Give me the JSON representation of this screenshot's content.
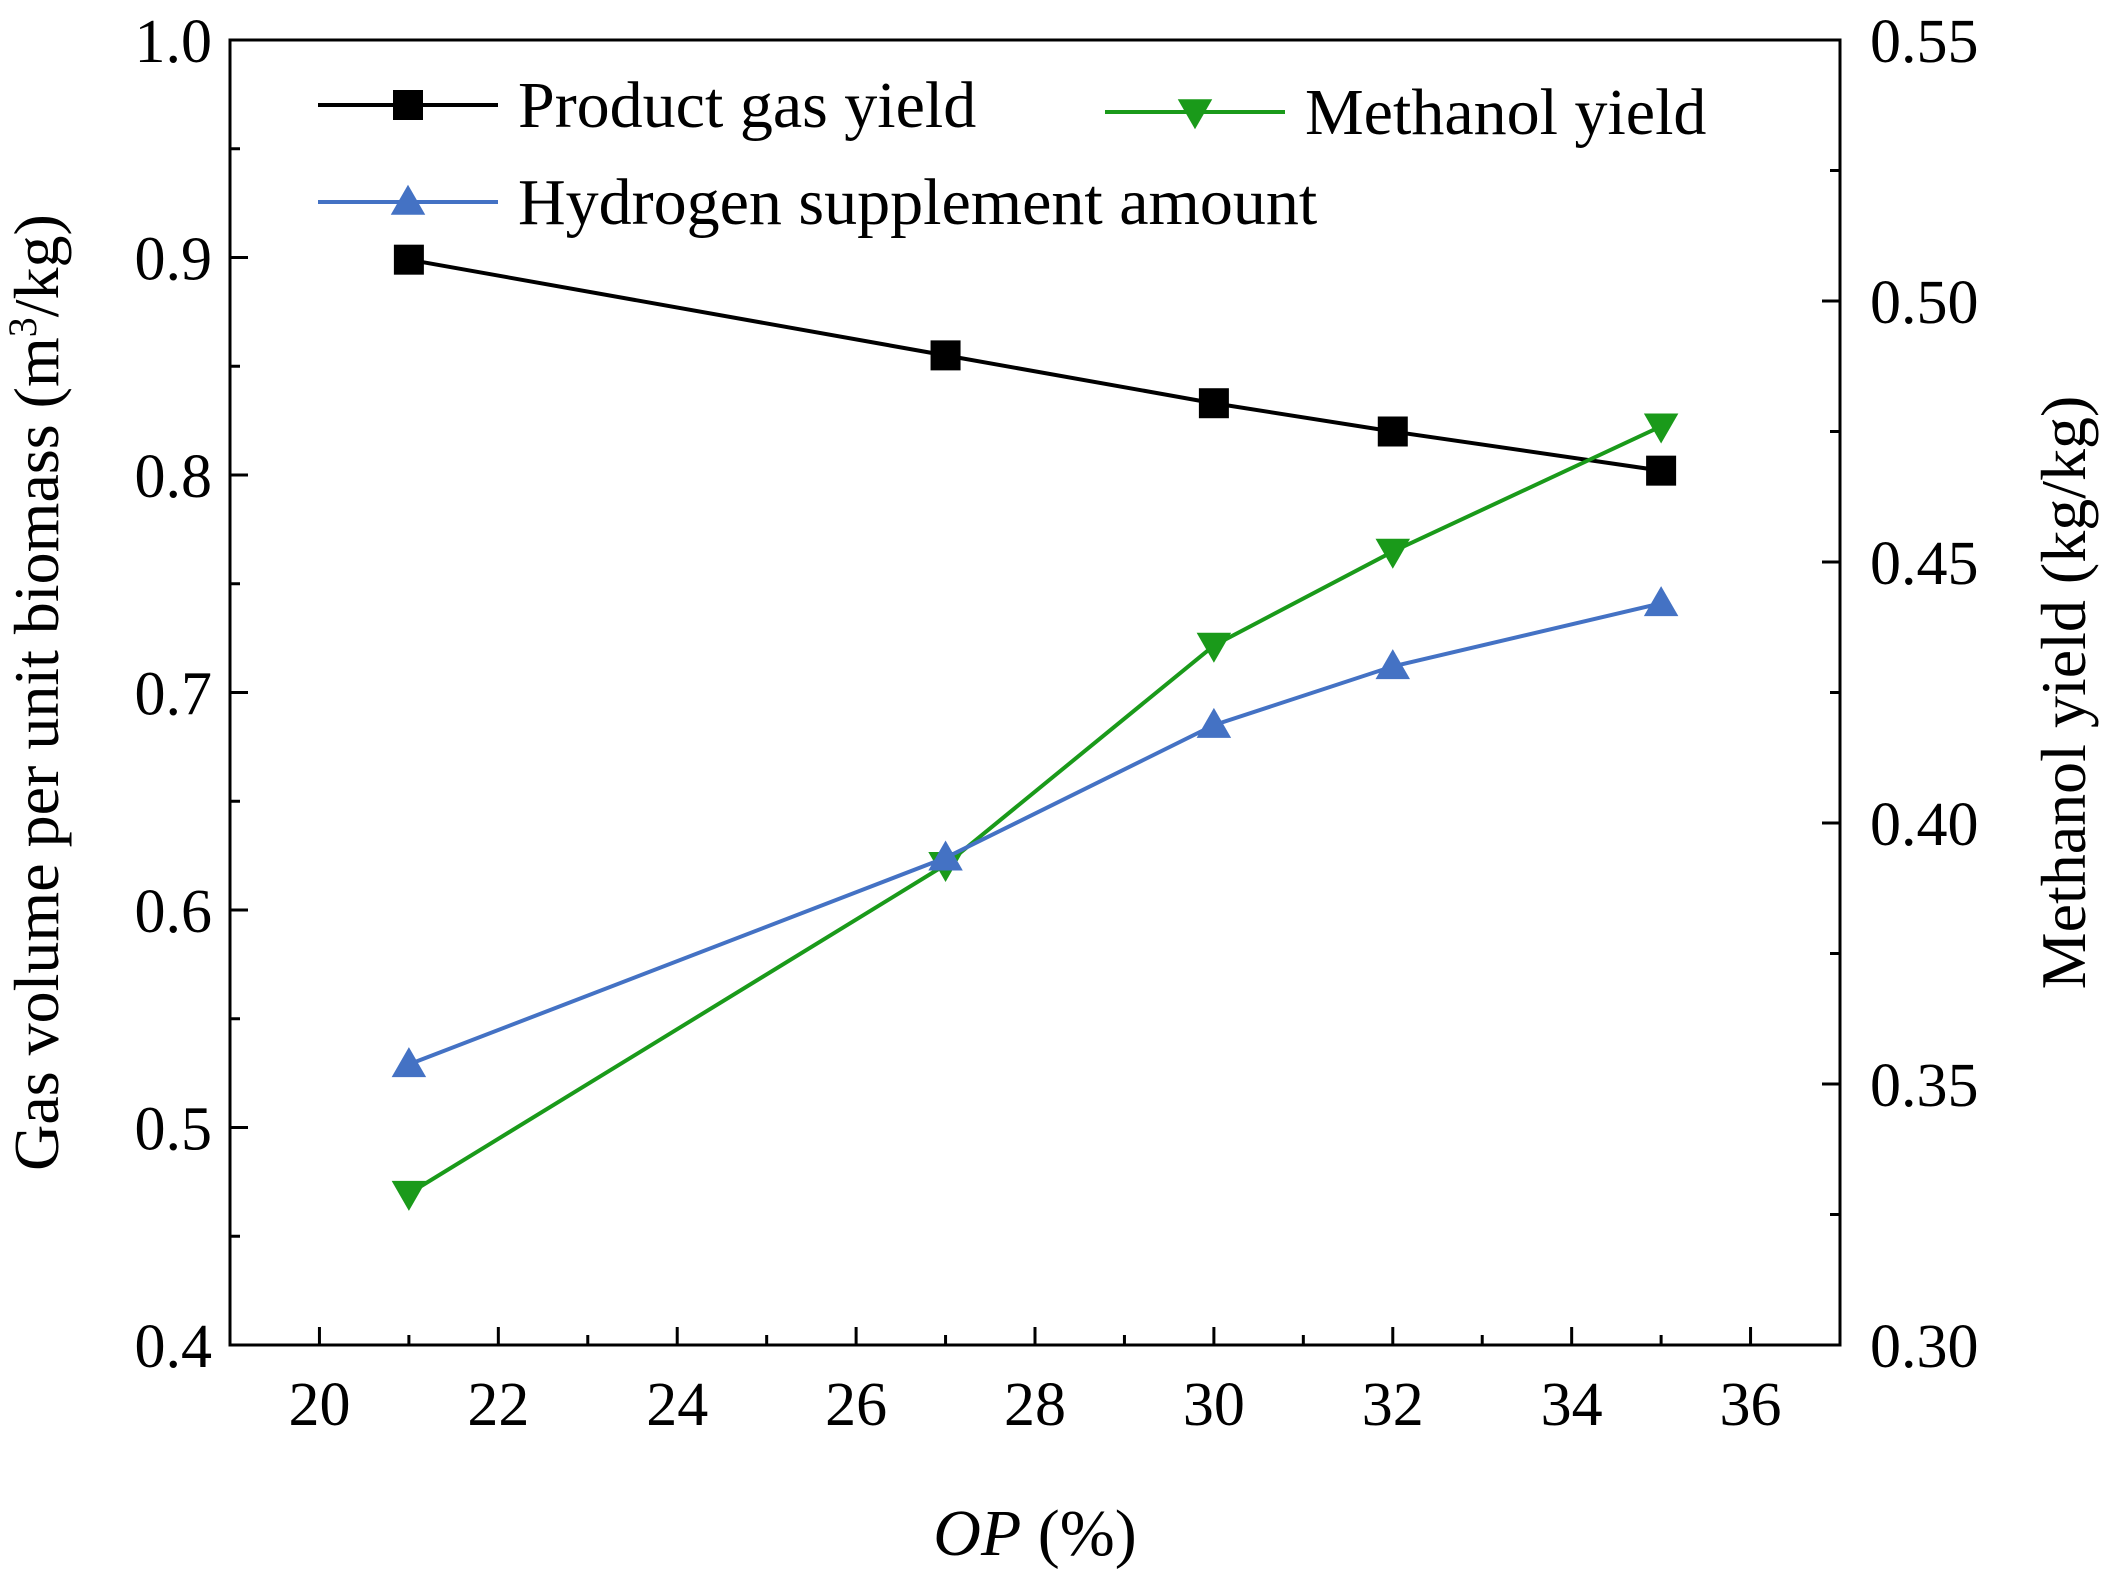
{
  "colors": {
    "product_gas": "#000000",
    "methanol": "#1a9a1a",
    "hydrogen": "#4472c4",
    "axis": "#000000",
    "background": "#ffffff"
  },
  "chart_data": {
    "type": "line",
    "x": [
      21,
      27,
      30,
      32,
      35
    ],
    "xlim": [
      19,
      37
    ],
    "xticks": [
      20,
      22,
      24,
      26,
      28,
      30,
      32,
      34,
      36
    ],
    "xlabel_italic": "OP",
    "xlabel_rest": " (%)",
    "ylabel_left_prefix": "Gas volume per unit biomass (m",
    "ylabel_left_sup": "3",
    "ylabel_left_suffix": "/kg)",
    "ylim_left": [
      0.4,
      1.0
    ],
    "yticks_left": [
      "0.4",
      "0.5",
      "0.6",
      "0.7",
      "0.8",
      "0.9",
      "1.0"
    ],
    "ylabel_right": "Methanol yield (kg/kg)",
    "ylim_right": [
      0.3,
      0.55
    ],
    "yticks_right": [
      "0.30",
      "0.35",
      "0.40",
      "0.45",
      "0.50",
      "0.55"
    ],
    "legend_position": "top",
    "series": [
      {
        "name": "Product gas yield",
        "axis": "left",
        "marker": "square",
        "color": "#000000",
        "values": [
          0.899,
          0.855,
          0.833,
          0.82,
          0.802
        ]
      },
      {
        "name": "Methanol yield",
        "axis": "right",
        "marker": "triangle-down",
        "color": "#1a9a1a",
        "values": [
          0.329,
          0.392,
          0.434,
          0.452,
          0.476
        ]
      },
      {
        "name": "Hydrogen supplement amount",
        "axis": "left",
        "marker": "triangle-up",
        "color": "#4472c4",
        "values": [
          0.529,
          0.624,
          0.685,
          0.712,
          0.741
        ]
      }
    ]
  }
}
